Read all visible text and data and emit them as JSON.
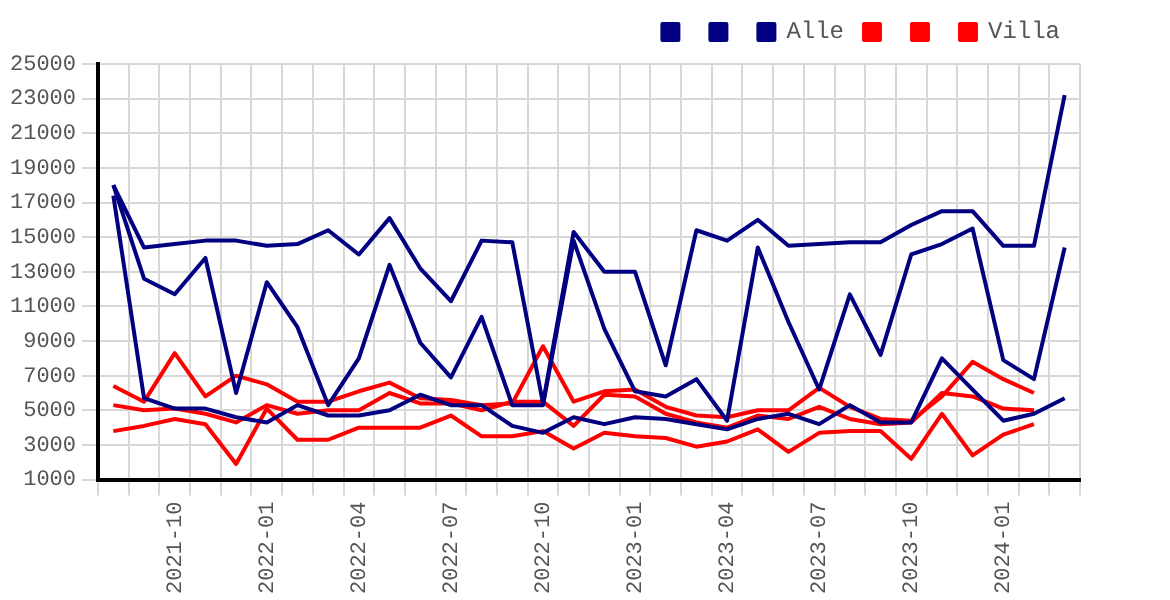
{
  "chart_data": {
    "type": "line",
    "categories": [
      null,
      null,
      "2021-10",
      null,
      null,
      "2022-01",
      null,
      null,
      "2022-04",
      null,
      null,
      "2022-07",
      null,
      null,
      "2022-10",
      null,
      null,
      "2023-01",
      null,
      null,
      "2023-04",
      null,
      null,
      "2023-07",
      null,
      null,
      "2023-10",
      null,
      null,
      "2024-01",
      null,
      null
    ],
    "series": [
      {
        "color": "#000080",
        "values": [
          18000,
          14400,
          14600,
          14800,
          14800,
          14500,
          14600,
          15400,
          14000,
          16100,
          13200,
          11300,
          14800,
          14700,
          5400,
          15300,
          13000,
          13000,
          7600,
          15400,
          14800,
          16000,
          14500,
          14600,
          14700,
          14700,
          15700,
          16500,
          16500,
          14500,
          14500,
          23200
        ]
      },
      {
        "color": "#000080",
        "values": [
          18000,
          12600,
          11700,
          13800,
          6000,
          12400,
          9800,
          5300,
          8000,
          13400,
          8900,
          6900,
          10400,
          5300,
          5300,
          14800,
          9700,
          6100,
          5800,
          6800,
          4400,
          14400,
          10100,
          6200,
          11700,
          8200,
          14000,
          14600,
          15500,
          7900,
          6800,
          14400
        ]
      },
      {
        "name": "Alle",
        "color": "#000080",
        "values": [
          17400,
          5700,
          5100,
          5100,
          4600,
          4300,
          5300,
          4700,
          4700,
          5000,
          5900,
          5300,
          5300,
          4100,
          3700,
          4600,
          4200,
          4600,
          4500,
          4200,
          3900,
          4500,
          4800,
          4200,
          5300,
          4300,
          4300,
          8000,
          6200,
          4400,
          4800,
          5700
        ]
      },
      {
        "color": "#ff0000",
        "values": [
          6400,
          5500,
          8300,
          5800,
          7000,
          6500,
          5500,
          5500,
          6100,
          6600,
          5700,
          5600,
          5300,
          5400,
          8700,
          5500,
          6100,
          6200,
          5200,
          4700,
          4600,
          5000,
          5000,
          6300,
          5200,
          4500,
          4400,
          5800,
          7800,
          6800,
          6000,
          null
        ]
      },
      {
        "color": "#ff0000",
        "values": [
          5300,
          5000,
          5100,
          4800,
          4300,
          5300,
          4800,
          5000,
          5000,
          6000,
          5400,
          5400,
          5000,
          5500,
          5500,
          4100,
          5900,
          5800,
          4800,
          4300,
          4000,
          4700,
          4500,
          5200,
          4500,
          4200,
          4300,
          6000,
          5800,
          5100,
          5000,
          null
        ]
      },
      {
        "name": "Villa",
        "color": "#ff0000",
        "values": [
          3800,
          4100,
          4500,
          4200,
          1900,
          5100,
          3300,
          3300,
          4000,
          4000,
          4000,
          4700,
          3500,
          3500,
          3800,
          2800,
          3700,
          3500,
          3400,
          2900,
          3200,
          3900,
          2600,
          3700,
          3800,
          3800,
          2200,
          4800,
          2400,
          3600,
          4200,
          null
        ]
      }
    ],
    "ylim": [
      1000,
      25000
    ],
    "yticks": [
      1000,
      3000,
      5000,
      7000,
      9000,
      11000,
      13000,
      15000,
      17000,
      19000,
      21000,
      23000,
      25000
    ],
    "grid": true,
    "legend": "top right",
    "marker": "none",
    "line_style": "solid"
  }
}
